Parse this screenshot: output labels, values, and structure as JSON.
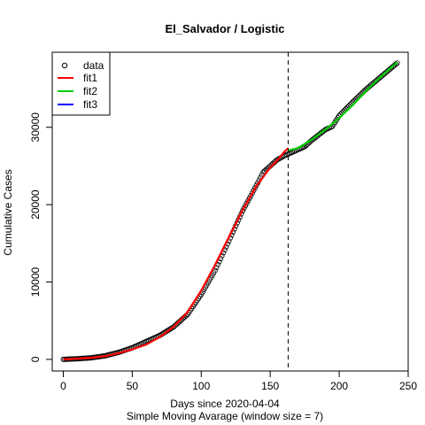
{
  "chart_data": {
    "type": "scatter",
    "title": "El_Salvador / Logistic",
    "xlabel": "Days since 2020-04-04",
    "subtitle": "Simple Moving Avarage (window size = 7)",
    "ylabel": "Cumulative Cases",
    "xlim": [
      -8,
      250
    ],
    "ylim": [
      -1500,
      39700
    ],
    "x_ticks": [
      0,
      50,
      100,
      150,
      200,
      250
    ],
    "y_ticks": [
      0,
      10000,
      20000,
      30000
    ],
    "cutoff_x": 163,
    "legend": {
      "placement": "top-left",
      "entries": [
        {
          "label": "data",
          "style": "point",
          "color": "#000000"
        },
        {
          "label": "fit1",
          "style": "line",
          "color": "#ff0000"
        },
        {
          "label": "fit2",
          "style": "line",
          "color": "#00cd00"
        },
        {
          "label": "fit3",
          "style": "line",
          "color": "#0000ff"
        }
      ]
    },
    "data_anchors": {
      "x": [
        0,
        10,
        20,
        30,
        40,
        50,
        60,
        70,
        80,
        90,
        100,
        110,
        120,
        130,
        140,
        145,
        150,
        155,
        160,
        165,
        170,
        175,
        180,
        185,
        190,
        195,
        200,
        210,
        220,
        230,
        242
      ],
      "y": [
        0,
        80,
        200,
        450,
        900,
        1500,
        2300,
        3100,
        4200,
        5800,
        8400,
        11500,
        15300,
        19200,
        22500,
        24200,
        25000,
        25800,
        26300,
        26700,
        27100,
        27500,
        28300,
        29000,
        29700,
        30100,
        31500,
        33300,
        35000,
        36500,
        38300
      ]
    },
    "series": [
      {
        "name": "fit1",
        "color": "#ff0000",
        "x": [
          0,
          10,
          20,
          30,
          40,
          50,
          60,
          70,
          80,
          90,
          100,
          110,
          120,
          130,
          140,
          150,
          155,
          160,
          163
        ],
        "y": [
          0,
          100,
          200,
          400,
          800,
          1300,
          1900,
          2900,
          4200,
          6100,
          8900,
          12200,
          15800,
          19300,
          22400,
          24800,
          25700,
          26800,
          27300
        ]
      },
      {
        "name": "fit2",
        "color": "#00cd00",
        "x": [
          163,
          170,
          180,
          190,
          200,
          210,
          220,
          230,
          242
        ],
        "y": [
          27000,
          27300,
          28400,
          29700,
          31200,
          32900,
          34800,
          36500,
          38400
        ]
      },
      {
        "name": "fit3",
        "color": "#0000ff",
        "x": [],
        "y": []
      }
    ]
  }
}
